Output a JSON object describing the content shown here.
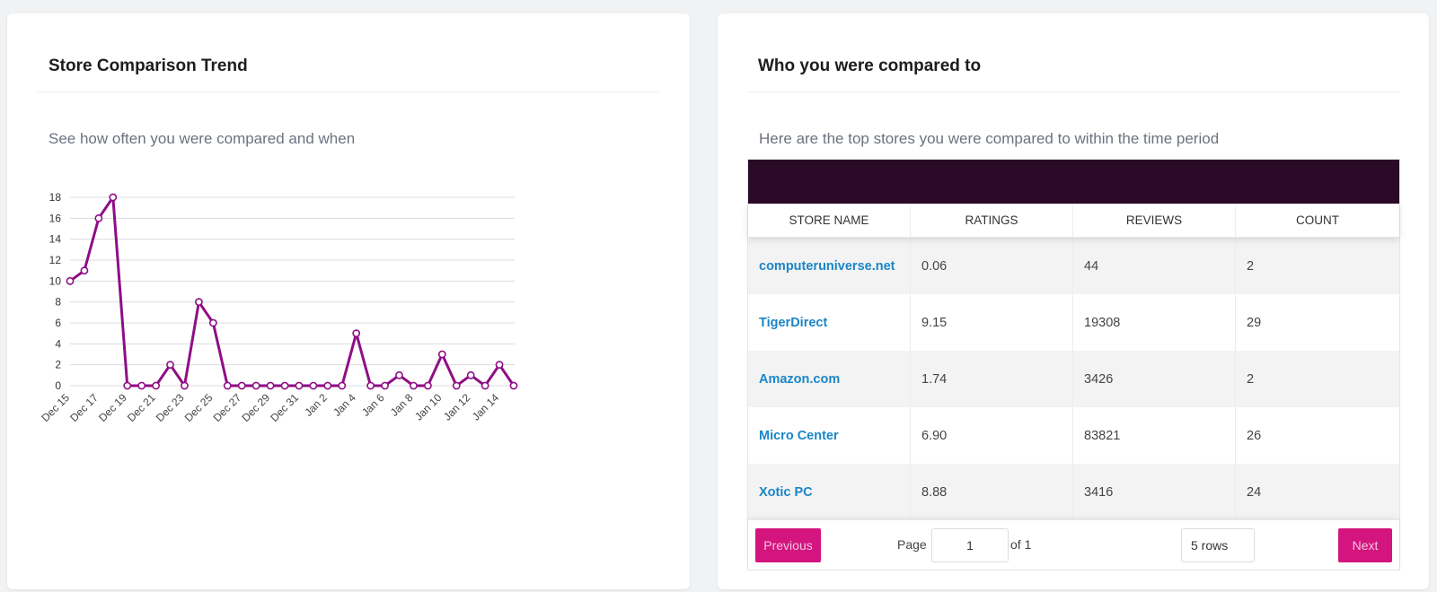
{
  "left_card": {
    "title": "Store Comparison Trend",
    "subtitle": "See how often you were compared and when"
  },
  "chart_data": {
    "type": "line",
    "x": [
      "Dec 15",
      "Dec 16",
      "Dec 17",
      "Dec 18",
      "Dec 19",
      "Dec 20",
      "Dec 21",
      "Dec 22",
      "Dec 23",
      "Dec 24",
      "Dec 25",
      "Dec 26",
      "Dec 27",
      "Dec 28",
      "Dec 29",
      "Dec 30",
      "Dec 31",
      "Jan 1",
      "Jan 2",
      "Jan 3",
      "Jan 4",
      "Jan 5",
      "Jan 6",
      "Jan 7",
      "Jan 8",
      "Jan 9",
      "Jan 10",
      "Jan 11",
      "Jan 12",
      "Jan 13",
      "Jan 14",
      "Jan 15"
    ],
    "x_tick_labels": [
      "Dec 15",
      "Dec 17",
      "Dec 19",
      "Dec 21",
      "Dec 23",
      "Dec 25",
      "Dec 27",
      "Dec 29",
      "Dec 31",
      "Jan 2",
      "Jan 4",
      "Jan 6",
      "Jan 8",
      "Jan 10",
      "Jan 12",
      "Jan 14"
    ],
    "series": [
      {
        "values": [
          10,
          11,
          16,
          18,
          0,
          0,
          0,
          2,
          0,
          8,
          6,
          0,
          0,
          0,
          0,
          0,
          0,
          0,
          0,
          0,
          5,
          0,
          0,
          1,
          0,
          0,
          3,
          0,
          1,
          0,
          2,
          0
        ]
      }
    ],
    "ylim": [
      0,
      18
    ],
    "y_ticks": [
      0,
      2,
      4,
      6,
      8,
      10,
      12,
      14,
      16,
      18
    ],
    "grid": true,
    "colors": {
      "line": "#8e0e86"
    }
  },
  "right_card": {
    "title": "Who you were compared to",
    "subtitle": "Here are the top stores you were compared to within the time period"
  },
  "table": {
    "columns": [
      "Store Name",
      "Ratings",
      "Reviews",
      "Count"
    ],
    "rows": [
      [
        "computeruniverse.net",
        "0.06",
        "44",
        "2"
      ],
      [
        "TigerDirect",
        "9.15",
        "19308",
        "29"
      ],
      [
        "Amazon.com",
        "1.74",
        "3426",
        "2"
      ],
      [
        "Micro Center",
        "6.90",
        "83821",
        "26"
      ],
      [
        "Xotic PC",
        "8.88",
        "3416",
        "24"
      ]
    ],
    "header_bar_color": "#2a0a27",
    "link_color": "#1a86c7"
  },
  "pager": {
    "previous_label": "Previous",
    "page_label": "Page",
    "page_value": "1",
    "of_label": "of 1",
    "rows_label": "5 rows",
    "next_label": "Next",
    "button_color": "#d4157f"
  }
}
